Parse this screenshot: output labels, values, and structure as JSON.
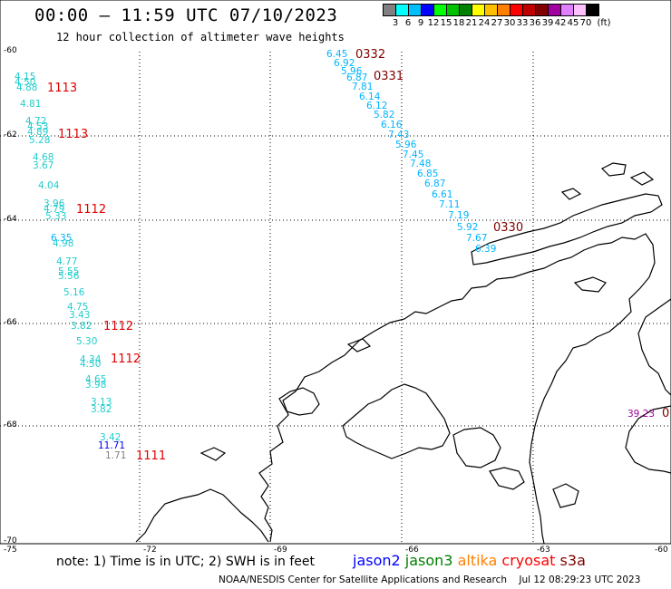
{
  "header": {
    "title": "00:00 — 11:59 UTC 07/10/2023",
    "subtitle": "12 hour collection of altimeter wave heights"
  },
  "color_scale": {
    "unit": "(ft)",
    "colors": [
      "#808080",
      "#00ffff",
      "#00bfff",
      "#0000ff",
      "#00ff00",
      "#00c000",
      "#008000",
      "#ffff00",
      "#ffc000",
      "#ff8000",
      "#ff0000",
      "#c00000",
      "#800000",
      "#a000a0",
      "#e080ff",
      "#ffc0ff",
      "#000000"
    ],
    "labels": [
      "3",
      "6",
      "9",
      "12",
      "15",
      "18",
      "21",
      "24",
      "27",
      "30",
      "33",
      "36",
      "39",
      "42",
      "45",
      "70"
    ]
  },
  "axes": {
    "lat_labels": [
      "-60",
      "-62",
      "-64",
      "-66",
      "-68",
      "-70"
    ],
    "lon_labels": [
      "-75",
      "-72",
      "-69",
      "-66",
      "-63",
      "-60"
    ]
  },
  "tracks": [
    {
      "id": "west",
      "time_labels": [
        {
          "text": "1113",
          "color": "#e00000"
        },
        {
          "text": "1113",
          "color": "#e00000"
        },
        {
          "text": "1112",
          "color": "#e00000"
        },
        {
          "text": "1112",
          "color": "#e00000"
        },
        {
          "text": "1112",
          "color": "#e00000"
        },
        {
          "text": "1111",
          "color": "#e00000"
        }
      ],
      "values": [
        {
          "text": "4.15",
          "color": "#22cccc"
        },
        {
          "text": "4.50",
          "color": "#22cccc"
        },
        {
          "text": "4.88",
          "color": "#22cccc"
        },
        {
          "text": "4.81",
          "color": "#22cccc"
        },
        {
          "text": "4.72",
          "color": "#22cccc"
        },
        {
          "text": "4.53",
          "color": "#22cccc"
        },
        {
          "text": "4.89",
          "color": "#22cccc"
        },
        {
          "text": "5.28",
          "color": "#22cccc"
        },
        {
          "text": "4.68",
          "color": "#22cccc"
        },
        {
          "text": "3.67",
          "color": "#22cccc"
        },
        {
          "text": "4.04",
          "color": "#22cccc"
        },
        {
          "text": "3.96",
          "color": "#22cccc"
        },
        {
          "text": "4.79",
          "color": "#22cccc"
        },
        {
          "text": "5.33",
          "color": "#22cccc"
        },
        {
          "text": "6.35",
          "color": "#00b4ff"
        },
        {
          "text": "4.98",
          "color": "#22cccc"
        },
        {
          "text": "4.77",
          "color": "#22cccc"
        },
        {
          "text": "5.55",
          "color": "#22cccc"
        },
        {
          "text": "5.56",
          "color": "#22cccc"
        },
        {
          "text": "5.16",
          "color": "#22cccc"
        },
        {
          "text": "4.75",
          "color": "#22cccc"
        },
        {
          "text": "3.43",
          "color": "#22cccc"
        },
        {
          "text": "3.82",
          "color": "#22cccc"
        },
        {
          "text": "5.30",
          "color": "#22cccc"
        },
        {
          "text": "4.34",
          "color": "#22cccc"
        },
        {
          "text": "4.50",
          "color": "#22cccc"
        },
        {
          "text": "4.65",
          "color": "#22cccc"
        },
        {
          "text": "3.98",
          "color": "#22cccc"
        },
        {
          "text": "3.13",
          "color": "#22cccc"
        },
        {
          "text": "3.82",
          "color": "#22cccc"
        },
        {
          "text": "3.42",
          "color": "#22cccc"
        },
        {
          "text": "11.71",
          "color": "#0000ff"
        },
        {
          "text": "1.71",
          "color": "#808080"
        }
      ]
    },
    {
      "id": "east",
      "time_labels": [
        {
          "text": "0332",
          "color": "#800000"
        },
        {
          "text": "0331",
          "color": "#800000"
        },
        {
          "text": "0330",
          "color": "#800000"
        }
      ],
      "values": [
        {
          "text": "6.45",
          "color": "#00b4ff"
        },
        {
          "text": "6.92",
          "color": "#00b4ff"
        },
        {
          "text": "5.96",
          "color": "#00b4ff"
        },
        {
          "text": "6.87",
          "color": "#00b4ff"
        },
        {
          "text": "7.81",
          "color": "#00b4ff"
        },
        {
          "text": "6.14",
          "color": "#00b4ff"
        },
        {
          "text": "6.12",
          "color": "#00b4ff"
        },
        {
          "text": "5.82",
          "color": "#00b4ff"
        },
        {
          "text": "6.16",
          "color": "#00b4ff"
        },
        {
          "text": "7.43",
          "color": "#00b4ff"
        },
        {
          "text": "5.96",
          "color": "#00b4ff"
        },
        {
          "text": "7.45",
          "color": "#00b4ff"
        },
        {
          "text": "7.48",
          "color": "#00b4ff"
        },
        {
          "text": "6.85",
          "color": "#00b4ff"
        },
        {
          "text": "6.87",
          "color": "#00b4ff"
        },
        {
          "text": "6.61",
          "color": "#00b4ff"
        },
        {
          "text": "7.11",
          "color": "#00b4ff"
        },
        {
          "text": "7.19",
          "color": "#00b4ff"
        },
        {
          "text": "5.92",
          "color": "#00b4ff"
        },
        {
          "text": "7.67",
          "color": "#00b4ff"
        },
        {
          "text": "6.39",
          "color": "#00b4ff"
        }
      ]
    },
    {
      "id": "edge",
      "time_labels": [
        {
          "text": "0",
          "color": "#800000"
        }
      ],
      "values": [
        {
          "text": "39.23",
          "color": "#a000a0"
        }
      ]
    }
  ],
  "footer": {
    "note": "note: 1) Time is in UTC; 2) SWH is in feet",
    "satellites": [
      {
        "name": "jason2",
        "color": "#0000ff"
      },
      {
        "name": "jason3",
        "color": "#008000"
      },
      {
        "name": "altika",
        "color": "#ff8000"
      },
      {
        "name": "cryosat",
        "color": "#ff0000"
      },
      {
        "name": "s3a",
        "color": "#800000"
      }
    ],
    "credit": "NOAA/NESDIS Center for Satellite Applications and Research    Jul 12 08:29:23 UTC 2023"
  }
}
